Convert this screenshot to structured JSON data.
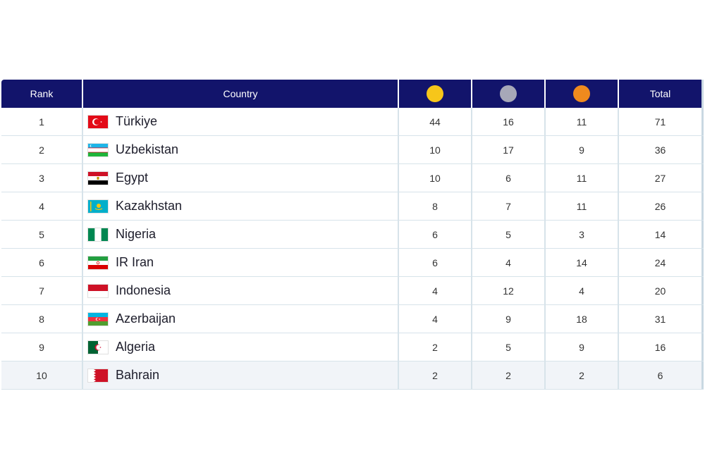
{
  "table": {
    "headers": {
      "rank": "Rank",
      "country": "Country",
      "total": "Total"
    },
    "medal_colors": {
      "gold": "#f7c61a",
      "silver": "#a7a8b8",
      "bronze": "#ef8a1e"
    },
    "header_bg": "#12146b",
    "rows": [
      {
        "rank": "1",
        "country": "Türkiye",
        "flag": "flag-turkiye-icon",
        "gold": "44",
        "silver": "16",
        "bronze": "11",
        "total": "71"
      },
      {
        "rank": "2",
        "country": "Uzbekistan",
        "flag": "flag-uzbekistan-icon",
        "gold": "10",
        "silver": "17",
        "bronze": "9",
        "total": "36"
      },
      {
        "rank": "3",
        "country": "Egypt",
        "flag": "flag-egypt-icon",
        "gold": "10",
        "silver": "6",
        "bronze": "11",
        "total": "27"
      },
      {
        "rank": "4",
        "country": "Kazakhstan",
        "flag": "flag-kazakhstan-icon",
        "gold": "8",
        "silver": "7",
        "bronze": "11",
        "total": "26"
      },
      {
        "rank": "5",
        "country": "Nigeria",
        "flag": "flag-nigeria-icon",
        "gold": "6",
        "silver": "5",
        "bronze": "3",
        "total": "14"
      },
      {
        "rank": "6",
        "country": "IR Iran",
        "flag": "flag-iran-icon",
        "gold": "6",
        "silver": "4",
        "bronze": "14",
        "total": "24"
      },
      {
        "rank": "7",
        "country": "Indonesia",
        "flag": "flag-indonesia-icon",
        "gold": "4",
        "silver": "12",
        "bronze": "4",
        "total": "20"
      },
      {
        "rank": "8",
        "country": "Azerbaijan",
        "flag": "flag-azerbaijan-icon",
        "gold": "4",
        "silver": "9",
        "bronze": "18",
        "total": "31"
      },
      {
        "rank": "9",
        "country": "Algeria",
        "flag": "flag-algeria-icon",
        "gold": "2",
        "silver": "5",
        "bronze": "9",
        "total": "16"
      },
      {
        "rank": "10",
        "country": "Bahrain",
        "flag": "flag-bahrain-icon",
        "gold": "2",
        "silver": "2",
        "bronze": "2",
        "total": "6"
      }
    ]
  }
}
